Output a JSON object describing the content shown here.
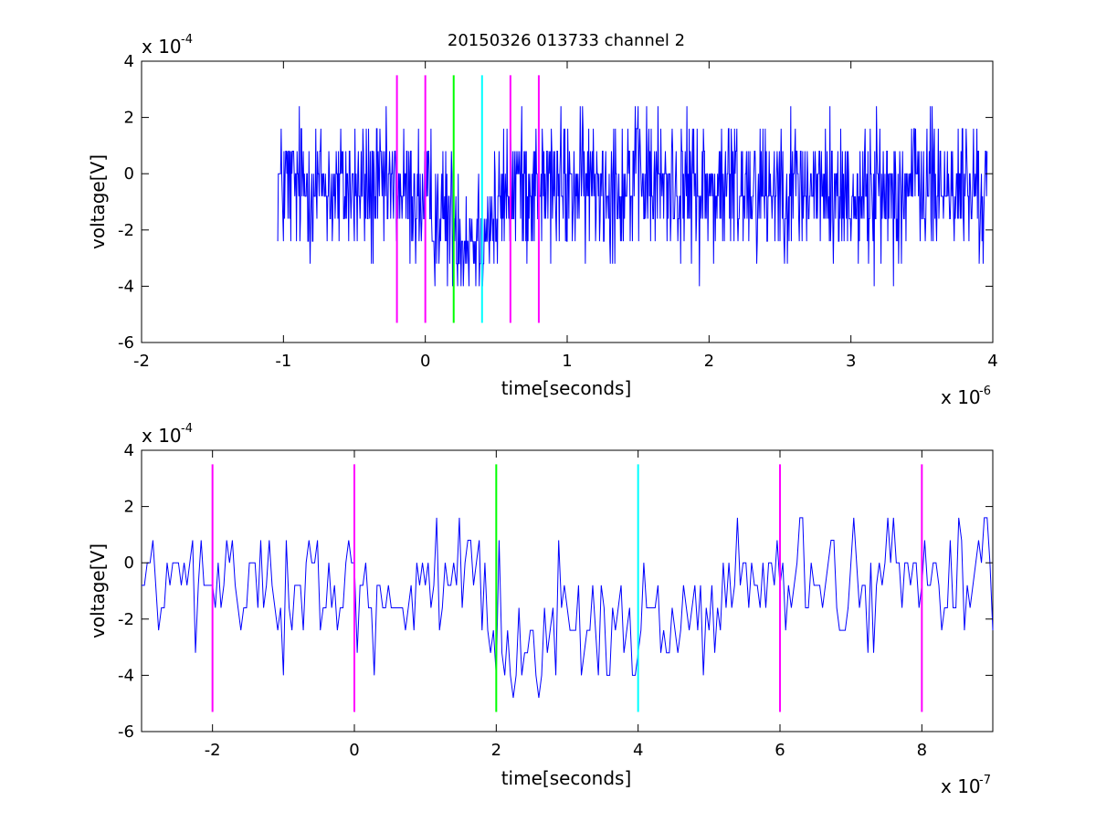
{
  "figure": {
    "title": "20150326 013733 channel 2"
  },
  "chart_data": [
    {
      "type": "line",
      "xlabel": "time[seconds]",
      "ylabel": "voltage[V]",
      "x_exponent_label": "x 10",
      "x_exponent": "-6",
      "y_exponent_label": "x 10",
      "y_exponent": "-4",
      "xlim": [
        -2,
        4
      ],
      "ylim": [
        -6,
        4
      ],
      "xticks": [
        -2,
        -1,
        0,
        1,
        2,
        3,
        4
      ],
      "yticks": [
        -6,
        -4,
        -2,
        0,
        2,
        4
      ],
      "grid": false,
      "series": [
        {
          "color": "#0000ff",
          "x_start": -1.04,
          "x_end": 3.96,
          "x_step": 0.004,
          "quantum": 0.8,
          "baseline": [
            [
              -1.04,
              -0.4
            ],
            [
              -0.2,
              -0.6
            ],
            [
              0.15,
              -1.5
            ],
            [
              0.3,
              -2.2
            ],
            [
              0.5,
              -1.6
            ],
            [
              0.6,
              -0.3
            ],
            [
              1.0,
              -0.5
            ],
            [
              1.5,
              -0.2
            ],
            [
              2.0,
              -0.6
            ],
            [
              2.5,
              -0.3
            ],
            [
              3.0,
              -0.8
            ],
            [
              3.5,
              -0.4
            ],
            [
              3.96,
              -0.6
            ]
          ],
          "noise": 1.25,
          "y_min": -4.0,
          "y_max": 3.2
        }
      ],
      "vertical_lines": [
        {
          "x": -0.2,
          "color": "#ff00ff"
        },
        {
          "x": 0.0,
          "color": "#ff00ff"
        },
        {
          "x": 0.2,
          "color": "#00ff00"
        },
        {
          "x": 0.4,
          "color": "#00ffff"
        },
        {
          "x": 0.6,
          "color": "#ff00ff"
        },
        {
          "x": 0.8,
          "color": "#ff00ff"
        }
      ],
      "vertical_line_range": [
        -5.3,
        3.5
      ]
    },
    {
      "type": "line",
      "xlabel": "time[seconds]",
      "ylabel": "voltage[V]",
      "x_exponent_label": "x 10",
      "x_exponent": "-7",
      "y_exponent_label": "x 10",
      "y_exponent": "-4",
      "xlim": [
        -3,
        9
      ],
      "ylim": [
        -6,
        4
      ],
      "xticks": [
        -2,
        0,
        2,
        4,
        6,
        8
      ],
      "yticks": [
        -6,
        -4,
        -2,
        0,
        2,
        4
      ],
      "grid": false,
      "series": [
        {
          "color": "#0000ff",
          "x_start": -3,
          "x_end": 9,
          "x_step": 0.04,
          "quantum": 0.8,
          "baseline": [
            [
              -3,
              -0.9
            ],
            [
              -1,
              -0.7
            ],
            [
              0,
              -1.1
            ],
            [
              1,
              -1.0
            ],
            [
              1.8,
              -1.6
            ],
            [
              2.2,
              -2.8
            ],
            [
              3,
              -2.2
            ],
            [
              4,
              -2.3
            ],
            [
              5,
              -1.6
            ],
            [
              5.5,
              -0.8
            ],
            [
              6,
              -0.7
            ],
            [
              7,
              -0.8
            ],
            [
              8,
              -0.3
            ],
            [
              9,
              -0.1
            ]
          ],
          "noise": 1.1,
          "y_min": -4.8,
          "y_max": 2.4
        }
      ],
      "vertical_lines": [
        {
          "x": -2,
          "color": "#ff00ff"
        },
        {
          "x": 0,
          "color": "#ff00ff"
        },
        {
          "x": 2,
          "color": "#00ff00"
        },
        {
          "x": 4,
          "color": "#00ffff"
        },
        {
          "x": 6,
          "color": "#ff00ff"
        },
        {
          "x": 8,
          "color": "#ff00ff"
        }
      ],
      "vertical_line_range": [
        -5.3,
        3.5
      ]
    }
  ]
}
